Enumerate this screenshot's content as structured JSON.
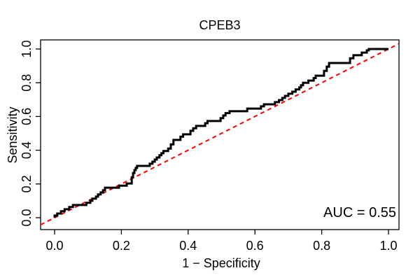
{
  "chart_data": {
    "type": "line",
    "title": "CPEB3",
    "xlabel": "1 − Specificity",
    "ylabel": "Sensitivity",
    "annotation": "AUC = 0.55",
    "auc": 0.55,
    "xlim": [
      0,
      1
    ],
    "ylim": [
      0,
      1
    ],
    "x_ticks": [
      "0.0",
      "0.2",
      "0.4",
      "0.6",
      "0.8",
      "1.0"
    ],
    "x_tick_values": [
      0.0,
      0.2,
      0.4,
      0.6,
      0.8,
      1.0
    ],
    "y_ticks": [
      "0.0",
      "0.2",
      "0.4",
      "0.6",
      "0.8",
      "1.0"
    ],
    "y_tick_values": [
      0.0,
      0.2,
      0.4,
      0.6,
      0.8,
      1.0
    ],
    "grid": false,
    "legend": "none",
    "colors": {
      "roc_curve": "#000000",
      "chance_line": "#FF0000",
      "box": "#000000",
      "text": "#000000"
    },
    "series": [
      {
        "name": "ROC curve",
        "type": "step",
        "color": "#000000",
        "style": "solid",
        "points": [
          [
            0.0,
            0.0
          ],
          [
            0.0,
            0.013
          ],
          [
            0.008,
            0.013
          ],
          [
            0.008,
            0.025
          ],
          [
            0.019,
            0.025
          ],
          [
            0.019,
            0.038
          ],
          [
            0.03,
            0.038
          ],
          [
            0.03,
            0.05
          ],
          [
            0.044,
            0.05
          ],
          [
            0.044,
            0.063
          ],
          [
            0.055,
            0.063
          ],
          [
            0.055,
            0.075
          ],
          [
            0.095,
            0.075
          ],
          [
            0.095,
            0.088
          ],
          [
            0.107,
            0.088
          ],
          [
            0.107,
            0.1
          ],
          [
            0.113,
            0.1
          ],
          [
            0.113,
            0.113
          ],
          [
            0.124,
            0.113
          ],
          [
            0.124,
            0.125
          ],
          [
            0.13,
            0.125
          ],
          [
            0.13,
            0.138
          ],
          [
            0.138,
            0.138
          ],
          [
            0.138,
            0.15
          ],
          [
            0.145,
            0.15
          ],
          [
            0.145,
            0.163
          ],
          [
            0.151,
            0.163
          ],
          [
            0.151,
            0.178
          ],
          [
            0.193,
            0.178
          ],
          [
            0.193,
            0.19
          ],
          [
            0.216,
            0.19
          ],
          [
            0.216,
            0.203
          ],
          [
            0.231,
            0.203
          ],
          [
            0.231,
            0.24
          ],
          [
            0.235,
            0.24
          ],
          [
            0.235,
            0.265
          ],
          [
            0.239,
            0.265
          ],
          [
            0.239,
            0.282
          ],
          [
            0.243,
            0.282
          ],
          [
            0.243,
            0.295
          ],
          [
            0.247,
            0.295
          ],
          [
            0.247,
            0.307
          ],
          [
            0.285,
            0.307
          ],
          [
            0.285,
            0.32
          ],
          [
            0.293,
            0.32
          ],
          [
            0.293,
            0.332
          ],
          [
            0.3,
            0.332
          ],
          [
            0.3,
            0.345
          ],
          [
            0.306,
            0.345
          ],
          [
            0.306,
            0.357
          ],
          [
            0.314,
            0.357
          ],
          [
            0.314,
            0.37
          ],
          [
            0.32,
            0.37
          ],
          [
            0.32,
            0.382
          ],
          [
            0.326,
            0.382
          ],
          [
            0.326,
            0.395
          ],
          [
            0.34,
            0.395
          ],
          [
            0.34,
            0.41
          ],
          [
            0.348,
            0.41
          ],
          [
            0.348,
            0.435
          ],
          [
            0.356,
            0.435
          ],
          [
            0.356,
            0.461
          ],
          [
            0.377,
            0.461
          ],
          [
            0.377,
            0.48
          ],
          [
            0.385,
            0.48
          ],
          [
            0.385,
            0.494
          ],
          [
            0.407,
            0.494
          ],
          [
            0.407,
            0.515
          ],
          [
            0.415,
            0.515
          ],
          [
            0.415,
            0.53
          ],
          [
            0.424,
            0.53
          ],
          [
            0.424,
            0.544
          ],
          [
            0.451,
            0.544
          ],
          [
            0.451,
            0.56
          ],
          [
            0.458,
            0.56
          ],
          [
            0.458,
            0.573
          ],
          [
            0.497,
            0.573
          ],
          [
            0.497,
            0.59
          ],
          [
            0.505,
            0.59
          ],
          [
            0.505,
            0.606
          ],
          [
            0.512,
            0.606
          ],
          [
            0.512,
            0.62
          ],
          [
            0.524,
            0.62
          ],
          [
            0.524,
            0.631
          ],
          [
            0.577,
            0.631
          ],
          [
            0.577,
            0.647
          ],
          [
            0.618,
            0.647
          ],
          [
            0.618,
            0.66
          ],
          [
            0.627,
            0.66
          ],
          [
            0.627,
            0.672
          ],
          [
            0.66,
            0.672
          ],
          [
            0.66,
            0.685
          ],
          [
            0.672,
            0.685
          ],
          [
            0.672,
            0.697
          ],
          [
            0.682,
            0.697
          ],
          [
            0.682,
            0.71
          ],
          [
            0.69,
            0.71
          ],
          [
            0.69,
            0.722
          ],
          [
            0.7,
            0.722
          ],
          [
            0.7,
            0.735
          ],
          [
            0.712,
            0.735
          ],
          [
            0.712,
            0.747
          ],
          [
            0.722,
            0.747
          ],
          [
            0.722,
            0.76
          ],
          [
            0.733,
            0.76
          ],
          [
            0.733,
            0.772
          ],
          [
            0.738,
            0.772
          ],
          [
            0.738,
            0.785
          ],
          [
            0.744,
            0.785
          ],
          [
            0.744,
            0.8
          ],
          [
            0.76,
            0.8
          ],
          [
            0.76,
            0.813
          ],
          [
            0.776,
            0.813
          ],
          [
            0.776,
            0.828
          ],
          [
            0.782,
            0.828
          ],
          [
            0.782,
            0.842
          ],
          [
            0.807,
            0.842
          ],
          [
            0.807,
            0.87
          ],
          [
            0.815,
            0.87
          ],
          [
            0.815,
            0.895
          ],
          [
            0.822,
            0.895
          ],
          [
            0.822,
            0.917
          ],
          [
            0.885,
            0.917
          ],
          [
            0.885,
            0.945
          ],
          [
            0.895,
            0.945
          ],
          [
            0.895,
            0.963
          ],
          [
            0.92,
            0.963
          ],
          [
            0.92,
            0.979
          ],
          [
            0.935,
            0.979
          ],
          [
            0.935,
            0.992
          ],
          [
            0.941,
            0.992
          ],
          [
            0.941,
            1.0
          ],
          [
            1.0,
            1.0
          ]
        ]
      },
      {
        "name": "Chance line",
        "type": "line",
        "color": "#FF0000",
        "style": "dashed",
        "points": [
          [
            0,
            0
          ],
          [
            1,
            1
          ]
        ]
      }
    ]
  }
}
